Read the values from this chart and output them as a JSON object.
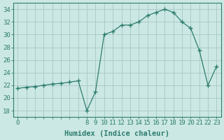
{
  "x": [
    0,
    1,
    2,
    3,
    4,
    5,
    6,
    7,
    8,
    9,
    10,
    11,
    12,
    13,
    14,
    15,
    16,
    17,
    18,
    19,
    20,
    21,
    22,
    23
  ],
  "y": [
    21.5,
    21.7,
    21.8,
    22.0,
    22.2,
    22.3,
    22.5,
    22.7,
    18.0,
    21.0,
    30.0,
    30.5,
    31.5,
    31.5,
    32.0,
    33.0,
    33.5,
    34.0,
    33.5,
    32.0,
    31.0,
    27.5,
    22.0,
    25.0
  ],
  "line_color": "#2d7d6e",
  "marker": "+",
  "marker_size": 4,
  "marker_lw": 1.0,
  "bg_color": "#cce8e4",
  "grid_color": "#aaccca",
  "axis_color": "#2d7d6e",
  "xlabel": "Humidex (Indice chaleur)",
  "xlabel_fontsize": 7.5,
  "tick_fontsize": 6.5,
  "ylim": [
    17,
    35
  ],
  "xlim": [
    -0.5,
    23.5
  ],
  "yticks": [
    18,
    20,
    22,
    24,
    26,
    28,
    30,
    32,
    34
  ],
  "xticks_all": [
    0,
    1,
    2,
    3,
    4,
    5,
    6,
    7,
    8,
    9,
    10,
    11,
    12,
    13,
    14,
    15,
    16,
    17,
    18,
    19,
    20,
    21,
    22,
    23
  ],
  "xticks_labeled": [
    0,
    8,
    9,
    10,
    11,
    12,
    13,
    14,
    15,
    16,
    17,
    18,
    19,
    20,
    21,
    22,
    23
  ]
}
